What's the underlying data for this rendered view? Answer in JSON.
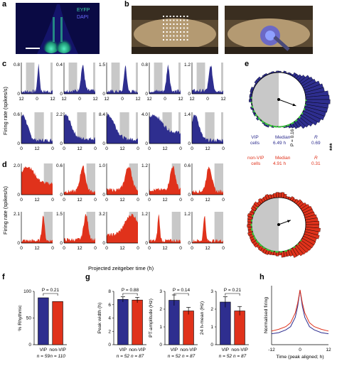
{
  "panel_labels": [
    "a",
    "b",
    "c",
    "d",
    "e",
    "f",
    "g",
    "h"
  ],
  "panel_a": {
    "legend": [
      "EYFP",
      "DAPI"
    ],
    "colors": {
      "eyfp": "#3dd6a8",
      "dapi": "#2a2ad0"
    }
  },
  "colors": {
    "vip": "#2e2e8f",
    "nonvip": "#e0321b",
    "gray": "#c8c8c8",
    "green": "#39c43a"
  },
  "panel_c": {
    "ylabel": "Firing rate (spikes/s)",
    "row1_ytop": [
      "0.8",
      "0.4",
      "1.5",
      "0.8",
      "1.2"
    ],
    "row2_ytop": [
      "0.6",
      "2.2",
      "8.4",
      "4.0",
      "1.4"
    ],
    "xticks": [
      "12",
      "0",
      "12"
    ],
    "xticks2": [
      "0",
      "12",
      "0"
    ]
  },
  "panel_d": {
    "ylabel": "Firing rate (spikes/s)",
    "row1_ytop": [
      "2.0",
      "0.6",
      "1.0",
      "1.2",
      "0.6"
    ],
    "row2_ytop": [
      "2.1",
      "1.5",
      "3.2",
      "1.2",
      "1.2"
    ],
    "xticks": [
      "0",
      "12",
      "0"
    ],
    "xlabel": "Projected zeitgeber time (h)"
  },
  "panel_e": {
    "vip_label": "VIP\ncells",
    "vip_median_label": "Median",
    "vip_median": "6.49 h",
    "vip_r_label": "R",
    "vip_r": "0.69",
    "nonvip_label": "non-VIP\ncells",
    "nonvip_median_label": "Median",
    "nonvip_median": "4.91 h",
    "nonvip_r_label": "R",
    "nonvip_r": "0.31",
    "p_value": "P = 0.16",
    "significance": "***"
  },
  "panel_f": {
    "ylabel": "% Rhythmic",
    "p_value": "P = 0.21",
    "categories": [
      "VIP",
      "non-VIP"
    ],
    "n": [
      "n = 59",
      "n = 110"
    ],
    "yticks": [
      "0",
      "50",
      "100"
    ]
  },
  "panel_g": {
    "plots": [
      {
        "ylabel": "Peak width (h)",
        "p_value": "P = 0.88",
        "yticks": [
          "0",
          "2",
          "4",
          "6",
          "8"
        ]
      },
      {
        "ylabel": "PT-amplitude (Hz)",
        "p_value": "P = 0.14",
        "yticks": [
          "0",
          "1",
          "2",
          "3"
        ]
      },
      {
        "ylabel": "24 h-mean (Hz)",
        "p_value": "P = 0.21",
        "yticks": [
          "0",
          "1",
          "2",
          "3"
        ]
      }
    ],
    "categories": [
      "VIP",
      "non-VIP"
    ],
    "n": [
      "n = 52",
      "n = 87"
    ]
  },
  "panel_h": {
    "ylabel": "Normalised firing",
    "xlabel": "Time (peak aligned; h)",
    "xticks": [
      "-12",
      "0",
      "12"
    ]
  },
  "chart_data": [
    {
      "type": "bar",
      "categories": [
        "VIP",
        "non-VIP"
      ],
      "values": [
        88,
        81
      ],
      "ylabel": "% Rhythmic",
      "ylim": [
        0,
        100
      ]
    },
    {
      "type": "bar",
      "categories": [
        "VIP",
        "non-VIP"
      ],
      "values": [
        6.8,
        6.7
      ],
      "errors": [
        0.4,
        0.4
      ],
      "ylabel": "Peak width (h)",
      "ylim": [
        0,
        8
      ]
    },
    {
      "type": "bar",
      "categories": [
        "VIP",
        "non-VIP"
      ],
      "values": [
        2.5,
        1.9
      ],
      "errors": [
        0.3,
        0.2
      ],
      "ylabel": "PT-amplitude (Hz)",
      "ylim": [
        0,
        3
      ]
    },
    {
      "type": "bar",
      "categories": [
        "VIP",
        "non-VIP"
      ],
      "values": [
        2.4,
        1.9
      ],
      "errors": [
        0.3,
        0.25
      ],
      "ylabel": "24 h-mean (Hz)",
      "ylim": [
        0,
        3
      ]
    },
    {
      "type": "line",
      "x": [
        -12,
        -9,
        -6,
        -4,
        -2,
        -1,
        0,
        1,
        2,
        4,
        6,
        9,
        12
      ],
      "series": [
        {
          "values": [
            0.2,
            0.22,
            0.27,
            0.33,
            0.5,
            0.7,
            1.0,
            0.7,
            0.5,
            0.33,
            0.27,
            0.22,
            0.2
          ]
        },
        {
          "values": [
            0.25,
            0.28,
            0.33,
            0.4,
            0.58,
            0.76,
            1.0,
            0.76,
            0.58,
            0.4,
            0.33,
            0.28,
            0.25
          ]
        }
      ],
      "xlabel": "Time (peak aligned; h)",
      "ylabel": "Normalised firing",
      "xlim": [
        -12,
        12
      ]
    }
  ]
}
